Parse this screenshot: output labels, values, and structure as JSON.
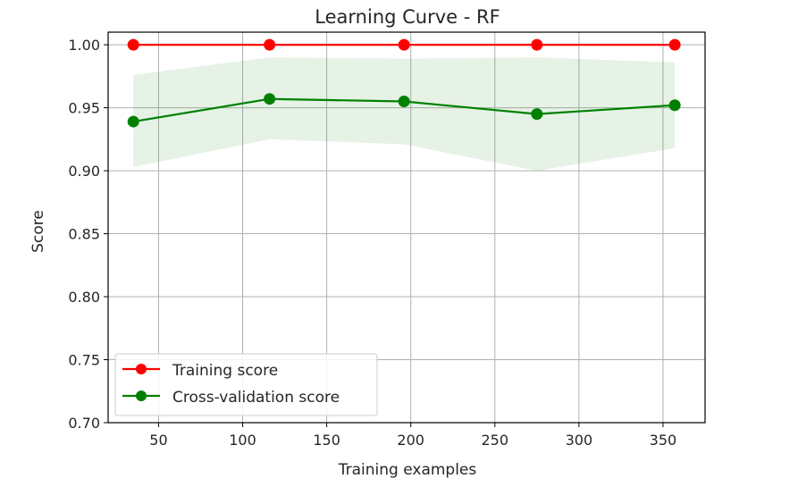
{
  "chart_data": {
    "type": "line",
    "title": "Learning Curve - RF",
    "xlabel": "Training examples",
    "ylabel": "Score",
    "xlim": [
      20,
      375
    ],
    "ylim": [
      0.7,
      1.01
    ],
    "x_ticks": [
      50,
      100,
      150,
      200,
      250,
      300,
      350
    ],
    "x_tick_labels": [
      "50",
      "100",
      "150",
      "200",
      "250",
      "300",
      "350"
    ],
    "y_ticks": [
      0.7,
      0.75,
      0.8,
      0.85,
      0.9,
      0.95,
      1.0
    ],
    "y_tick_labels": [
      "0.70",
      "0.75",
      "0.80",
      "0.85",
      "0.90",
      "0.95",
      "1.00"
    ],
    "grid": true,
    "legend_position": "lower-left",
    "x": [
      35,
      116,
      196,
      275,
      357
    ],
    "series": [
      {
        "name": "Training score",
        "color": "#ff0000",
        "marker": "circle",
        "values": [
          1.0,
          1.0,
          1.0,
          1.0,
          1.0
        ]
      },
      {
        "name": "Cross-validation score",
        "color": "#008000",
        "marker": "circle",
        "values": [
          0.939,
          0.957,
          0.955,
          0.945,
          0.952
        ],
        "band_lower": [
          0.903,
          0.925,
          0.921,
          0.9,
          0.918
        ],
        "band_upper": [
          0.976,
          0.99,
          0.989,
          0.99,
          0.986
        ],
        "band_color": "#008000"
      }
    ]
  }
}
